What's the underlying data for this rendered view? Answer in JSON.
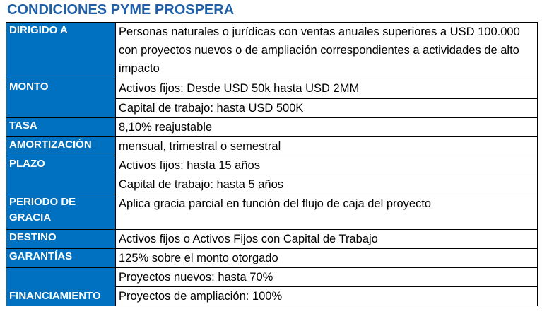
{
  "title": "CONDICIONES PYME PROSPERA",
  "rows": {
    "dirigido": {
      "label": "DIRIGIDO A",
      "values": [
        "Personas naturales o jurídicas con ventas anuales superiores a USD 100.000 con proyectos nuevos o de ampliación correspondientes a actividades de alto impacto"
      ]
    },
    "monto": {
      "label": "MONTO",
      "values": [
        "Activos fijos: Desde USD 50k hasta USD 2MM",
        "Capital de trabajo: hasta USD 500K"
      ]
    },
    "tasa": {
      "label": "TASA",
      "values": [
        "8,10% reajustable"
      ]
    },
    "amortizacion": {
      "label": "AMORTIZACIÓN",
      "values": [
        "mensual, trimestral o semestral"
      ]
    },
    "plazo": {
      "label": "PLAZO",
      "values": [
        "Activos fijos: hasta 15 años",
        "Capital de trabajo: hasta 5 años"
      ]
    },
    "gracia": {
      "label": "PERIODO DE GRACIA",
      "values": [
        "Aplica gracia parcial en función del flujo de caja del proyecto"
      ]
    },
    "destino": {
      "label": "DESTINO",
      "values": [
        "Activos fijos o Activos Fijos con Capital de Trabajo"
      ]
    },
    "garantias": {
      "label": "GARANTÍAS",
      "values": [
        "125% sobre el monto otorgado"
      ]
    },
    "financiamiento": {
      "label": "FINANCIAMIENTO",
      "values": [
        "Proyectos nuevos: hasta 70%",
        "Proyectos de ampliación: 100%"
      ]
    }
  },
  "colors": {
    "title": "#1f5fa8",
    "label_bg": "#0070c0",
    "label_text": "#ffffff",
    "border": "#000000"
  }
}
